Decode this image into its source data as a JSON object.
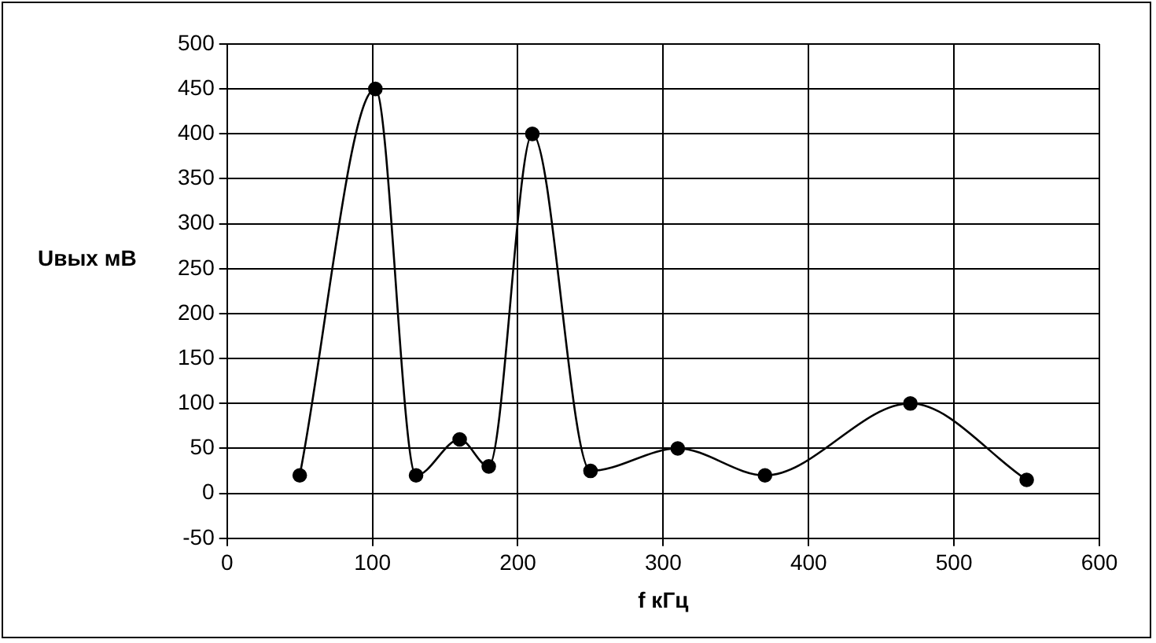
{
  "chart_data": {
    "type": "line",
    "xlabel": "f кГц",
    "ylabel": "Uвых мВ",
    "series": [
      {
        "color": "#000000",
        "x": [
          50,
          102,
          130,
          160,
          180,
          210,
          250,
          310,
          370,
          470,
          550
        ],
        "values": [
          20,
          450,
          20,
          60,
          30,
          400,
          25,
          50,
          20,
          100,
          15
        ]
      }
    ],
    "xlim": [
      0,
      600
    ],
    "xticks": [
      0,
      100,
      200,
      300,
      400,
      500,
      600
    ],
    "ylim": [
      -50,
      500
    ],
    "yticks": [
      -50,
      0,
      50,
      100,
      150,
      200,
      250,
      300,
      350,
      400,
      450,
      500
    ],
    "grid": true,
    "legend": false,
    "marker": "circle",
    "line_style": "solid"
  }
}
